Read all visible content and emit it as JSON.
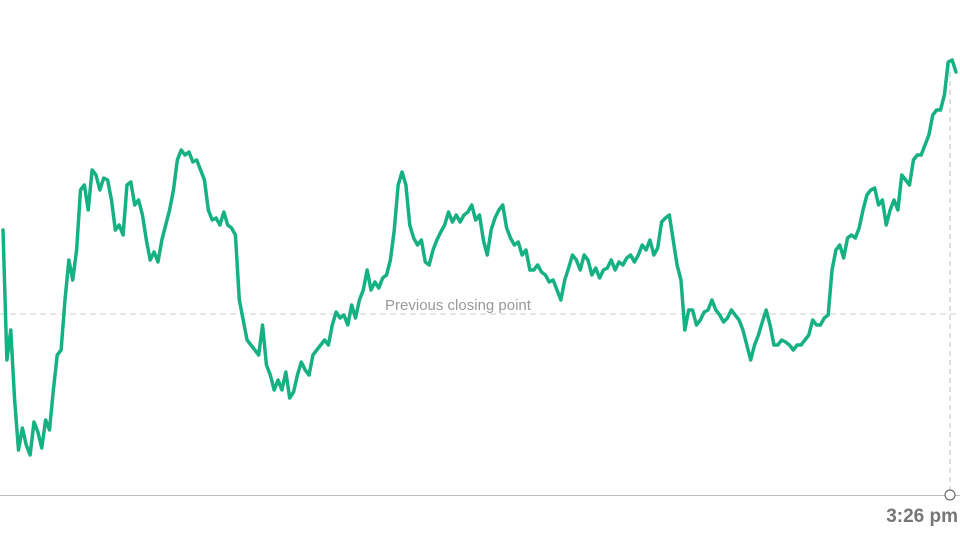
{
  "chart_data": {
    "type": "line",
    "values": [
      265,
      135,
      165,
      95,
      45,
      67,
      50,
      40,
      73,
      63,
      47,
      75,
      65,
      105,
      140,
      145,
      195,
      235,
      215,
      245,
      305,
      310,
      285,
      325,
      320,
      305,
      317,
      315,
      295,
      265,
      270,
      260,
      310,
      313,
      290,
      295,
      280,
      255,
      235,
      243,
      233,
      255,
      270,
      285,
      305,
      335,
      345,
      340,
      343,
      333,
      335,
      325,
      315,
      285,
      275,
      277,
      270,
      283,
      270,
      267,
      260,
      195,
      175,
      155,
      150,
      145,
      140,
      170,
      130,
      120,
      105,
      115,
      105,
      123,
      97,
      103,
      120,
      133,
      125,
      120,
      140,
      145,
      150,
      155,
      150,
      170,
      183,
      177,
      180,
      170,
      190,
      177,
      195,
      205,
      225,
      205,
      213,
      207,
      217,
      220,
      235,
      265,
      310,
      323,
      310,
      270,
      257,
      250,
      255,
      233,
      230,
      245,
      255,
      263,
      270,
      283,
      273,
      280,
      273,
      280,
      283,
      290,
      275,
      280,
      255,
      240,
      265,
      277,
      285,
      290,
      267,
      257,
      250,
      253,
      240,
      245,
      225,
      225,
      230,
      223,
      220,
      213,
      215,
      205,
      195,
      215,
      227,
      240,
      235,
      225,
      240,
      235,
      220,
      227,
      217,
      225,
      227,
      235,
      225,
      233,
      230,
      237,
      240,
      233,
      240,
      250,
      245,
      255,
      240,
      247,
      273,
      277,
      280,
      255,
      230,
      215,
      165,
      185,
      185,
      170,
      175,
      183,
      185,
      195,
      185,
      180,
      173,
      177,
      185,
      180,
      175,
      165,
      150,
      135,
      150,
      160,
      173,
      185,
      170,
      150,
      150,
      155,
      153,
      150,
      145,
      150,
      150,
      155,
      160,
      175,
      170,
      170,
      177,
      180,
      225,
      245,
      250,
      237,
      257,
      260,
      257,
      267,
      285,
      300,
      305,
      307,
      290,
      295,
      270,
      285,
      295,
      285,
      320,
      315,
      310,
      335,
      340,
      340,
      350,
      360,
      380,
      385,
      385,
      400,
      433,
      435,
      423
    ],
    "color": "#16b183",
    "ylim": [
      0,
      495
    ],
    "previous_close": 181,
    "previous_close_label": "Previous closing point",
    "last_time": "3:26 pm"
  }
}
